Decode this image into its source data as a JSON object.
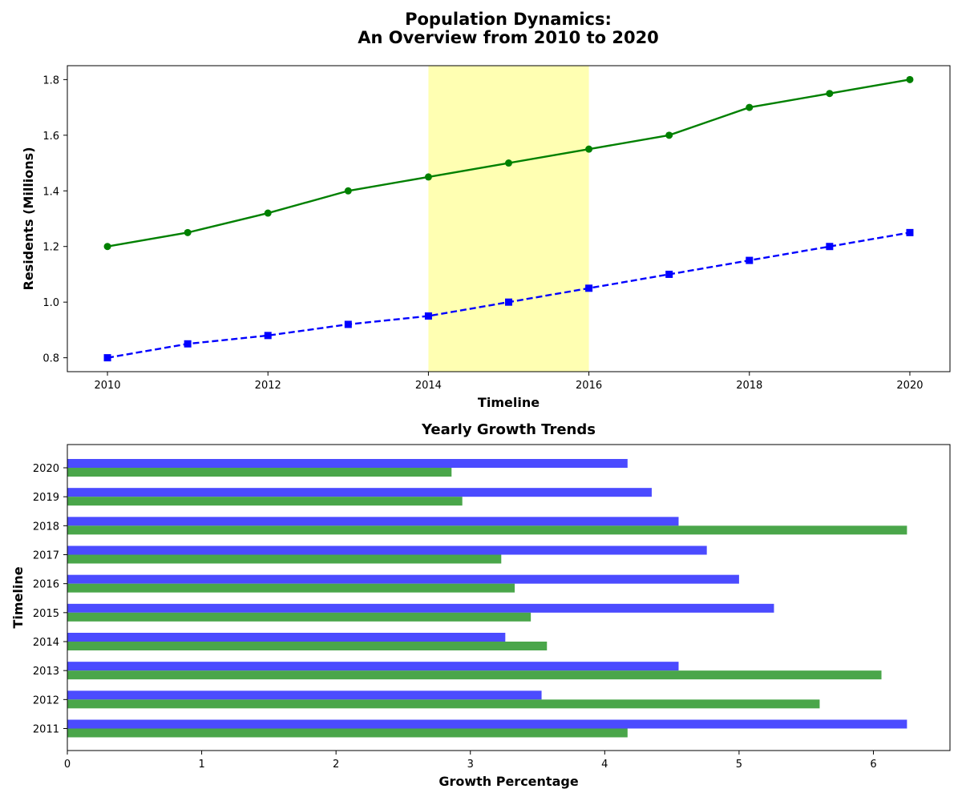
{
  "title_line1": "Population Dynamics:",
  "title_line2": "An Overview from 2010 to 2020",
  "chart_data": [
    {
      "type": "line",
      "title": "",
      "xlabel": "Timeline",
      "ylabel": "Residents (Millions)",
      "x": [
        2010,
        2011,
        2012,
        2013,
        2014,
        2015,
        2016,
        2017,
        2018,
        2019,
        2020
      ],
      "xlim": [
        2009.5,
        2020.5
      ],
      "ylim": [
        0.75,
        1.85
      ],
      "xticks": [
        2010,
        2012,
        2014,
        2016,
        2018,
        2020
      ],
      "yticks": [
        "0.8",
        "1.0",
        "1.2",
        "1.4",
        "1.6",
        "1.8"
      ],
      "highlight_span": [
        2014,
        2016
      ],
      "highlight_color": "#ffffb2",
      "series": [
        {
          "color": "#008000",
          "style": "solid",
          "marker": "circle",
          "values": [
            1.2,
            1.25,
            1.32,
            1.4,
            1.45,
            1.5,
            1.55,
            1.6,
            1.7,
            1.75,
            1.8
          ]
        },
        {
          "color": "#0000ff",
          "style": "dashed",
          "marker": "square",
          "values": [
            0.8,
            0.85,
            0.88,
            0.92,
            0.95,
            1.0,
            1.05,
            1.1,
            1.15,
            1.2,
            1.25
          ]
        }
      ],
      "grid": false
    },
    {
      "type": "bar",
      "orientation": "horizontal",
      "title": "Yearly Growth Trends",
      "xlabel": "Growth Percentage",
      "ylabel": "Timeline",
      "categories": [
        "2011",
        "2012",
        "2013",
        "2014",
        "2015",
        "2016",
        "2017",
        "2018",
        "2019",
        "2020"
      ],
      "xlim": [
        0,
        6.57
      ],
      "xticks": [
        "0",
        "1",
        "2",
        "3",
        "4",
        "5",
        "6"
      ],
      "series": [
        {
          "color": "#4b4bff",
          "values": [
            6.25,
            3.53,
            4.55,
            3.26,
            5.26,
            5.0,
            4.76,
            4.55,
            4.35,
            4.17
          ]
        },
        {
          "color": "#4aa64a",
          "values": [
            4.17,
            5.6,
            6.06,
            3.57,
            3.45,
            3.33,
            3.23,
            6.25,
            2.94,
            2.86
          ]
        }
      ],
      "grid": false
    }
  ]
}
